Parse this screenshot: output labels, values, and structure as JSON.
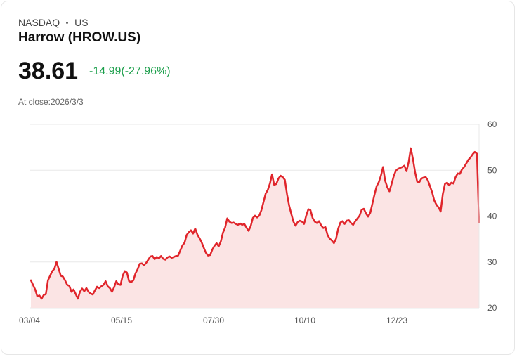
{
  "header": {
    "exchange": "NASDAQ",
    "region": "US",
    "title": "Harrow (HROW.US)",
    "price": "38.61",
    "change": "-14.99(-27.96%)",
    "close_label": "At close:2026/3/3"
  },
  "colors": {
    "line": "#e0252b",
    "fill": "#fbe4e4",
    "grid": "#e8e8e8",
    "change": "#1a9e4a"
  },
  "chart_data": {
    "type": "area",
    "title": "",
    "ylim": [
      20,
      60
    ],
    "yticks": [
      60,
      50,
      40,
      30,
      20
    ],
    "x_tick_labels": [
      "03/04",
      "05/15",
      "07/30",
      "10/10",
      "12/23"
    ],
    "values": [
      26,
      25,
      24,
      22.5,
      22.7,
      22,
      22.8,
      23,
      26,
      27,
      28,
      28.5,
      30,
      28.5,
      27,
      26.8,
      26,
      25,
      24.8,
      23.5,
      24,
      23,
      22,
      23.5,
      24.2,
      23.6,
      24.3,
      23.5,
      23.1,
      22.9,
      23.8,
      24.6,
      24.3,
      24.7,
      25,
      25.8,
      24.7,
      24.3,
      23.5,
      24.5,
      25.8,
      25.1,
      25,
      27,
      28,
      27.7,
      25.8,
      25.6,
      26,
      27.5,
      28.4,
      29.6,
      29.7,
      29.3,
      29.8,
      30.5,
      31.2,
      31.3,
      30.6,
      31.1,
      30.8,
      31.3,
      30.7,
      30.5,
      31,
      31.2,
      30.9,
      31.1,
      31.3,
      31.4,
      32.5,
      33.6,
      34.2,
      35.9,
      36.5,
      36.9,
      36.2,
      37.3,
      36,
      35.2,
      34.3,
      33.1,
      32,
      31.4,
      31.5,
      32.7,
      33.5,
      34.1,
      33.4,
      34.5,
      36.4,
      37.5,
      39.5,
      38.8,
      38.5,
      38.6,
      38.3,
      38.1,
      38.4,
      38.1,
      38.3,
      37.5,
      36.8,
      37.8,
      39.6,
      40.1,
      39.7,
      40.1,
      41.3,
      43.1,
      44.9,
      45.7,
      47.1,
      49.1,
      46.8,
      47,
      48.2,
      48.8,
      48.5,
      47.9,
      44.8,
      42.3,
      40.5,
      38.8,
      37.9,
      38.7,
      39,
      38.8,
      38.3,
      40.1,
      41.5,
      41.3,
      39.6,
      38.8,
      38.5,
      38.9,
      38,
      37.4,
      37.6,
      35.9,
      35.1,
      34.7,
      34.1,
      35.1,
      37.3,
      38.6,
      38.9,
      38.3,
      39,
      39.1,
      38.5,
      38.1,
      38.9,
      39.5,
      40.1,
      41.4,
      41.6,
      40.6,
      39.9,
      40.7,
      42.7,
      44.7,
      46.5,
      47.4,
      48.8,
      50.7,
      47.7,
      46.3,
      45.4,
      47,
      48.7,
      49.9,
      50.3,
      50.5,
      50.7,
      51,
      49.8,
      51.8,
      54.8,
      52.5,
      49.6,
      47.5,
      47.4,
      48.2,
      48.4,
      48.5,
      47.8,
      46.5,
      45.2,
      43.4,
      42.5,
      41.9,
      41,
      44.8,
      47,
      47.3,
      46.7,
      47.3,
      47.1,
      48.5,
      49.3,
      49.2,
      50.2,
      50.7,
      51.5,
      52.3,
      52.8,
      53.5,
      54,
      53.6,
      38.6
    ]
  }
}
